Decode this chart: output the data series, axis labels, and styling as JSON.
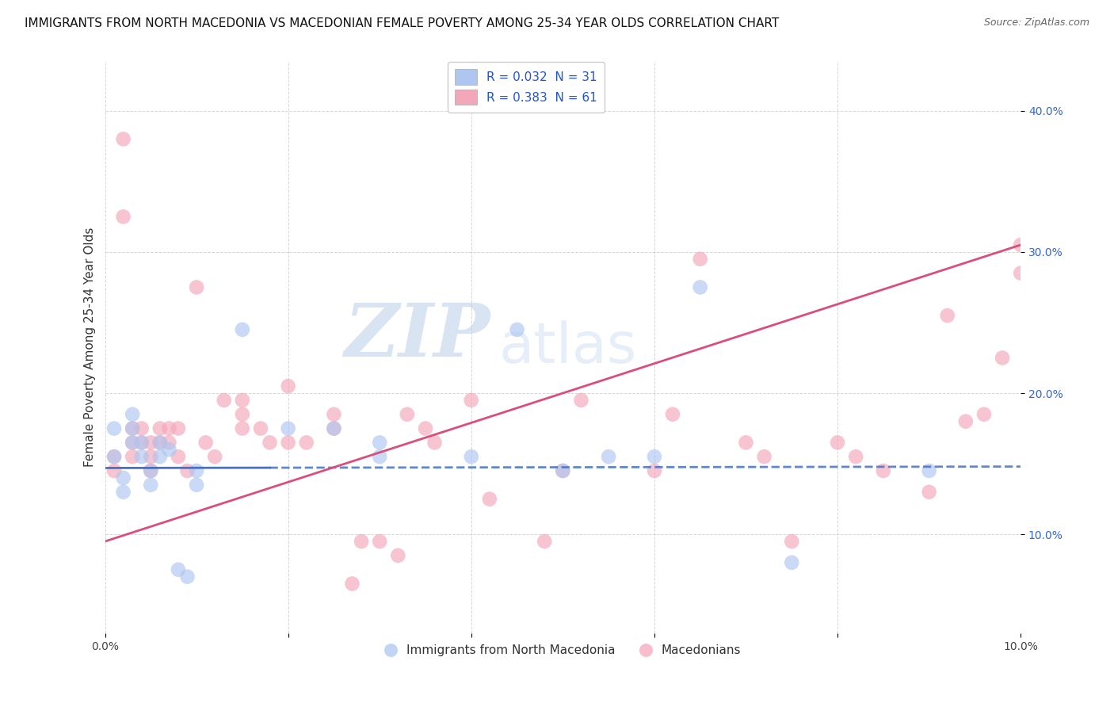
{
  "title": "IMMIGRANTS FROM NORTH MACEDONIA VS MACEDONIAN FEMALE POVERTY AMONG 25-34 YEAR OLDS CORRELATION CHART",
  "source": "Source: ZipAtlas.com",
  "ylabel": "Female Poverty Among 25-34 Year Olds",
  "xlim": [
    0.0,
    0.1
  ],
  "ylim": [
    0.03,
    0.435
  ],
  "xticks": [
    0.0,
    0.02,
    0.04,
    0.06,
    0.08,
    0.1
  ],
  "xtick_labels": [
    "0.0%",
    "",
    "",
    "",
    "",
    "10.0%"
  ],
  "yticks": [
    0.1,
    0.2,
    0.3,
    0.4
  ],
  "ytick_labels": [
    "10.0%",
    "20.0%",
    "30.0%",
    "40.0%"
  ],
  "legend1_label": "R = 0.032  N = 31",
  "legend2_label": "R = 0.383  N = 61",
  "legend1_patch_color": "#aec6f0",
  "legend2_patch_color": "#f4a7b9",
  "line1_color": "#4472C4",
  "line2_color": "#D94F7A",
  "scatter1_color": "#aec6f0",
  "scatter2_color": "#f4a7b9",
  "watermark_zip": "ZIP",
  "watermark_atlas": "atlas",
  "watermark_color_zip": "#b8cfe8",
  "watermark_color_atlas": "#c8daf0",
  "background_color": "#ffffff",
  "grid_color": "#cccccc",
  "blue_x": [
    0.001,
    0.001,
    0.002,
    0.002,
    0.003,
    0.003,
    0.003,
    0.004,
    0.004,
    0.005,
    0.005,
    0.006,
    0.006,
    0.007,
    0.008,
    0.009,
    0.01,
    0.01,
    0.015,
    0.02,
    0.025,
    0.03,
    0.03,
    0.04,
    0.045,
    0.05,
    0.055,
    0.06,
    0.065,
    0.075,
    0.09
  ],
  "blue_y": [
    0.155,
    0.175,
    0.14,
    0.13,
    0.185,
    0.175,
    0.165,
    0.165,
    0.155,
    0.145,
    0.135,
    0.165,
    0.155,
    0.16,
    0.075,
    0.07,
    0.145,
    0.135,
    0.245,
    0.175,
    0.175,
    0.165,
    0.155,
    0.155,
    0.245,
    0.145,
    0.155,
    0.155,
    0.275,
    0.08,
    0.145
  ],
  "pink_x": [
    0.001,
    0.001,
    0.002,
    0.002,
    0.003,
    0.003,
    0.003,
    0.004,
    0.004,
    0.005,
    0.005,
    0.005,
    0.006,
    0.006,
    0.007,
    0.007,
    0.008,
    0.008,
    0.009,
    0.01,
    0.011,
    0.012,
    0.013,
    0.015,
    0.015,
    0.015,
    0.017,
    0.018,
    0.02,
    0.02,
    0.022,
    0.025,
    0.025,
    0.027,
    0.028,
    0.03,
    0.032,
    0.033,
    0.035,
    0.036,
    0.04,
    0.042,
    0.048,
    0.05,
    0.052,
    0.06,
    0.062,
    0.065,
    0.07,
    0.072,
    0.075,
    0.08,
    0.082,
    0.085,
    0.09,
    0.092,
    0.094,
    0.096,
    0.098,
    0.1,
    0.1
  ],
  "pink_y": [
    0.155,
    0.145,
    0.38,
    0.325,
    0.175,
    0.165,
    0.155,
    0.175,
    0.165,
    0.165,
    0.155,
    0.145,
    0.175,
    0.165,
    0.175,
    0.165,
    0.175,
    0.155,
    0.145,
    0.275,
    0.165,
    0.155,
    0.195,
    0.195,
    0.185,
    0.175,
    0.175,
    0.165,
    0.205,
    0.165,
    0.165,
    0.185,
    0.175,
    0.065,
    0.095,
    0.095,
    0.085,
    0.185,
    0.175,
    0.165,
    0.195,
    0.125,
    0.095,
    0.145,
    0.195,
    0.145,
    0.185,
    0.295,
    0.165,
    0.155,
    0.095,
    0.165,
    0.155,
    0.145,
    0.13,
    0.255,
    0.18,
    0.185,
    0.225,
    0.305,
    0.285
  ],
  "title_fontsize": 11,
  "axis_label_fontsize": 11,
  "tick_fontsize": 10,
  "legend_fontsize": 11,
  "blue_line_solid_end": 0.018,
  "blue_line_y_at_0": 0.147,
  "blue_line_y_at_10": 0.148,
  "pink_line_y_at_0": 0.095,
  "pink_line_y_at_10": 0.305
}
